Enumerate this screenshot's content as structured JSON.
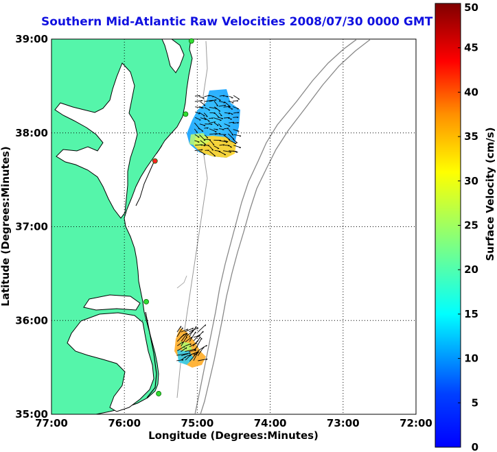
{
  "title": "Southern Mid-Atlantic Raw Velocities 2008/07/30 0000 GMT",
  "map": {
    "xlabel": "Longitude (Degrees:Minutes)",
    "ylabel": "Latitude (Degrees:Minutes)",
    "lon_range": [
      -77,
      -72
    ],
    "lat_range": [
      35,
      39
    ],
    "x_ticks": [
      {
        "lon": -77,
        "label": "77:00"
      },
      {
        "lon": -76,
        "label": "76:00"
      },
      {
        "lon": -75,
        "label": "75:00"
      },
      {
        "lon": -74,
        "label": "74:00"
      },
      {
        "lon": -73,
        "label": "73:00"
      },
      {
        "lon": -72,
        "label": "72:00"
      }
    ],
    "y_ticks": [
      {
        "lat": 39,
        "label": "39:00"
      },
      {
        "lat": 38,
        "label": "38:00"
      },
      {
        "lat": 37,
        "label": "37:00"
      },
      {
        "lat": 36,
        "label": "36:00"
      },
      {
        "lat": 35,
        "label": "35:00"
      }
    ],
    "grid": "dotted",
    "land_color": "#55f5aa",
    "stations": [
      {
        "lon": -75.08,
        "lat": 38.98,
        "color": "#33dd33"
      },
      {
        "lon": -75.16,
        "lat": 38.2,
        "color": "#33dd33"
      },
      {
        "lon": -75.58,
        "lat": 37.7,
        "color": "#ff2222"
      },
      {
        "lon": -75.7,
        "lat": 36.2,
        "color": "#33dd33"
      },
      {
        "lon": -75.53,
        "lat": 35.22,
        "color": "#33dd33"
      }
    ]
  },
  "colorbar": {
    "label": "Surface Velocity (cm/s)",
    "min": 0,
    "max": 50,
    "ticks": [
      {
        "value": 50,
        "label": "50"
      },
      {
        "value": 45,
        "label": "45"
      },
      {
        "value": 40,
        "label": "40"
      },
      {
        "value": 35,
        "label": "35"
      },
      {
        "value": 30,
        "label": "30"
      },
      {
        "value": 25,
        "label": "25"
      },
      {
        "value": 20,
        "label": "20"
      },
      {
        "value": 15,
        "label": "15"
      },
      {
        "value": 10,
        "label": "10"
      },
      {
        "value": 5,
        "label": "5"
      },
      {
        "value": 0,
        "label": "0"
      }
    ]
  }
}
